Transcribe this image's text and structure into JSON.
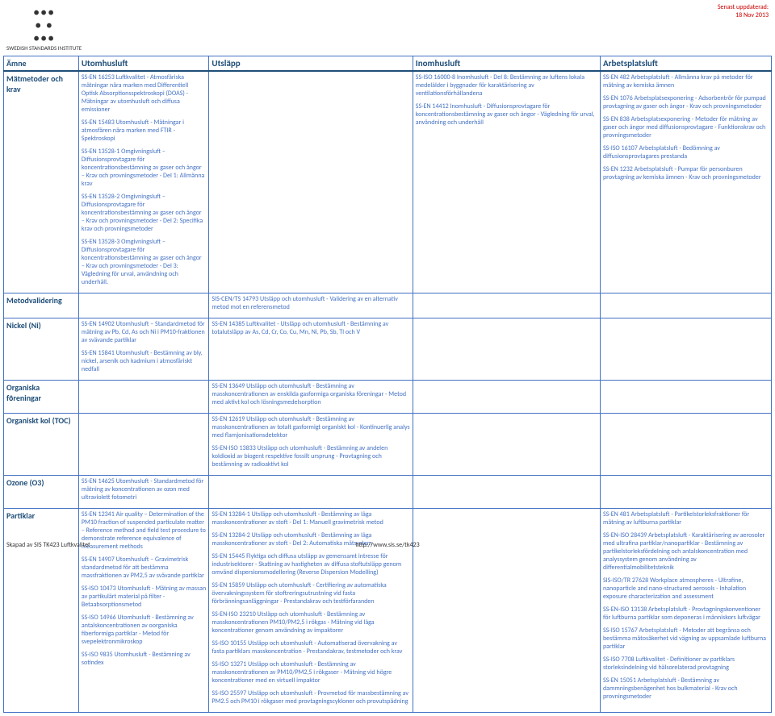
{
  "meta": {
    "updated_label": "Senast uppdaterad:",
    "updated_date": "18 Nov 2013",
    "logo_text": "SWEDISH STANDARDS INSTITUTE",
    "footer_left": "Skapad av SIS TK423 Luftkvalitet",
    "footer_center": "http://www.sis.se/tk423"
  },
  "columns": [
    "Ämne",
    "Utomhusluft",
    "Utsläpp",
    "Inomhusluft",
    "Arbetsplatsluft"
  ],
  "rows": [
    {
      "amne": "Mätmetoder och krav",
      "utomhus": [
        "SS-EN 16253 Luftkvalitet - Atmosfäriska mätningar nära marken med Differentiell Optisk Absorptionsspektroskopi (DOAS) - Mätningar av utomhusluft och diffusa emissioner",
        "SS-EN 15483 Utomhusluft - Mätningar i atmosfären nära marken med FTIR - Spektroskopi",
        "SS-EN 13528-1 Omgivningsluft – Diffusionsprovtagare för koncentrationsbestämning av gaser och ångor – Krav och provningsmetoder - Del 1: Allmänna krav",
        "SS-EN 13528-2 Omgivningsluft – Diffusionsprovtagare för koncentrationsbestämning av gaser och ångor – Krav och provningsmetoder - Del 2: Specifika krav och provningsmetoder",
        "SS-EN 13528-3 Omgivningsluft – Diffusionsprovtagare för koncentrationsbestämning av gaser och ångor – Krav och provningsmetoder - Del 3: Vägledning för urval, användning och underhåll."
      ],
      "utslapp": [],
      "inomhus": [
        "SS-ISO 16000-8 Inomhusluft - Del 8: Bestämning av luftens lokala medelålder i byggnader för karaktärisering av ventilationsförhållandena",
        "SS-EN 14412 Inomhusluft - Diffusionsprovtagare för koncentrationsbestämning av gaser och ångor - Vägledning för urval, användning och underhåll"
      ],
      "arbets": [
        "SS-EN 482 Arbetsplatsluft - Allmänna krav på metoder för mätning av kemiska ämnen",
        "SS-EN 1076 Arbetsplatsexponering - Adsorbentrör för pumpad provtagning av gaser och ångor - Krav och provningsmetoder",
        "SS-EN 838 Arbetsplatsexponering - Metoder för mätning av gaser och ångor med diffusionsprovtagare - Funktionskrav och provningsmetoder",
        "SS-ISO 16107 Arbetsplatsluft - Bedömning av diffusionsprovtagares prestanda",
        "SS-EN 1232 Arbetsplatsluft - Pumpar för personburen provtagning av kemiska ämnen - Krav och provningsmetoder"
      ]
    },
    {
      "amne": "Metodvalidering",
      "utomhus": [],
      "utslapp": [
        "SIS-CEN/TS 14793 Utsläpp och utomhusluft - Validering av en alternativ metod mot en referensmetod"
      ],
      "inomhus": [],
      "arbets": []
    },
    {
      "amne": "Nickel (Ni)",
      "utomhus": [
        "SS-EN 14902 Utomhusluft – Standardmetod för mätning av Pb, Cd, As och Ni i PM10-fraktionen av svävande partiklar",
        "SS-EN 15841 Utomhusluft - Bestämning av bly, nickel, arsenik och kadmium i atmosfäriskt nedfall"
      ],
      "utslapp": [
        "SS-EN 14385 Luftkvalitet - Utsläpp och utomhusluft - Bestämning av totalutsläpp av As, Cd, Cr, Co, Cu, Mn, Ni, Pb, Sb, Tl och V"
      ],
      "inomhus": [],
      "arbets": []
    },
    {
      "amne": "Organiska föreningar",
      "utomhus": [],
      "utslapp": [
        "SS-EN 13649 Utsläpp och utomhusluft - Bestämning av masskoncentrationen av enskilda gasformiga organiska föreningar - Metod med aktivt kol och lösningsmedelsorption"
      ],
      "inomhus": [],
      "arbets": []
    },
    {
      "amne": "Organiskt kol (TOC)",
      "utomhus": [],
      "utslapp": [
        "SS-EN 12619 Utsläpp och utomhusluft - Bestämning av masskoncentrationen av totalt gasformigt organiskt kol - Kontinuerlig analys med flamjonisationsdetektor",
        "SS-EN-ISO 13833 Utsläpp och utomhusluft - Bestämning av andelen koldioxid av biogent respektive fossilt ursprung - Provtagning och bestämning av radioaktivt kol"
      ],
      "inomhus": [],
      "arbets": []
    },
    {
      "amne": "Ozone (O3)",
      "utomhus": [
        "SS-EN 14625 Utomhusluft - Standardmetod för mätning av koncentrationen av ozon med ultraviolett fotometri"
      ],
      "utslapp": [],
      "inomhus": [],
      "arbets": []
    },
    {
      "amne": "Partiklar",
      "utomhus": [
        "SS-EN 12341 Air quality – Determination of the PM10 fraction of suspended particulate matter – Reference method and field test procedure to demonstrate reference equivalence of measurement methods",
        "SS-EN 14907 Utomhusluft – Gravimetrisk standardmetod för att bestämma massfraktionen av PM2,5 av svävande partiklar",
        "SS-ISO 10473 Utomhusluft - Mätning av massan av partikulärt material på filter - Betaabsorptionsmetod",
        "SS-ISO 14966 Utomhusluft - Bestämning av antalskoncentrationen av oorganiska fiberformiga partiklar - Metod för svepelektronmikroskop",
        "SS-ISO 9835 Utomhusluft - Bestämning av sotindex"
      ],
      "utslapp": [
        "SS-EN 13284-1 Utsläpp och utomhusluft - Bestämning av låga masskoncentrationer av stoft - Del 1: Manuell gravimetrisk metod",
        "SS-EN 13284-2 Utsläpp och utomhusluft - Bestämning av låga masskoncentrationer av stoft - Del 2: Automatiska mätsystem",
        "SS-EN 15445 Flyktiga och diffusa utsläpp av gemensamt intresse för industrisektorer - Skattning av hastigheten av diffusa stoftutsläpp genom omvänd dispersionsmodellering (Reverse Dispersion Modelling)",
        "SS-EN 15859 Utsläpp och utomhusluft - Certifiering av automatiska övervakningssystem för stoftreringsutrustning vid fasta förbränningsanläggningar - Prestandakrav och testförfaranden",
        "SS-EN-ISO 23210 Utsläpp och utomhusluft - Bestämning av masskoncentrationen PM10/PM2,5 i rökgas - Mätning vid låga koncentrationer genom användning av impaktorer",
        "SS-ISO 10155 Utsläpp och utomhusluft - Automatiserad övervakning av fasta partiklars masskoncentration - Prestandakrav, testmetoder och krav",
        "SS-ISO 13271 Utsläpp och utomhusluft - Bestämning av masskoncentrationen av PM10/PM2,5 i rökgaser - Mätning vid högre koncentrationer med en virtuell impaktor",
        "SS-ISO 25597 Utsläpp och utomhusluft - Provmetod för massbestämning av PM2.5 och PM10 i rökgaser med provtagningscykloner och provutspädning"
      ],
      "inomhus": [],
      "arbets": [
        "SS-EN 481 Arbetsplatsluft - Partikelstorleksfraktioner för mätning av luftburna partiklar",
        "SS-EN-ISO 28439 Arbetsplatsluft - Karaktärisering av aerosoler med ultrafina partiklar/nanopartiklar - Bestämning av partikelstorleksfördelning och antalskoncentration med analyssystem genom användning av differentialmobilitetsteknik",
        "SIS-ISO/TR 27628 Workplace atmospheres - Ultrafine, nanoparticle and nano-structured aerosols - Inhalation exposure characterization and assessment",
        "SS-EN-ISO 13138 Arbetsplatsluft - Provtagningskonventioner för luftburna partiklar som deponeras i människors luftvägar",
        "SS-ISO 15767 Arbetsplatsluft - Metoder att begränsa och bestämma mätosäkerhet vid vägning av uppsamlade luftburna partiklar",
        "SS-ISO 7708 Luftkvalitet - Definitioner av partiklars storleksindelning vid hälsorelaterad provtagning",
        "SS-EN 15051 Arbetsplatsluft - Bestämning av dammningsbenägenhet hos bulkmaterial - Krav och provningsmetoder"
      ]
    }
  ]
}
